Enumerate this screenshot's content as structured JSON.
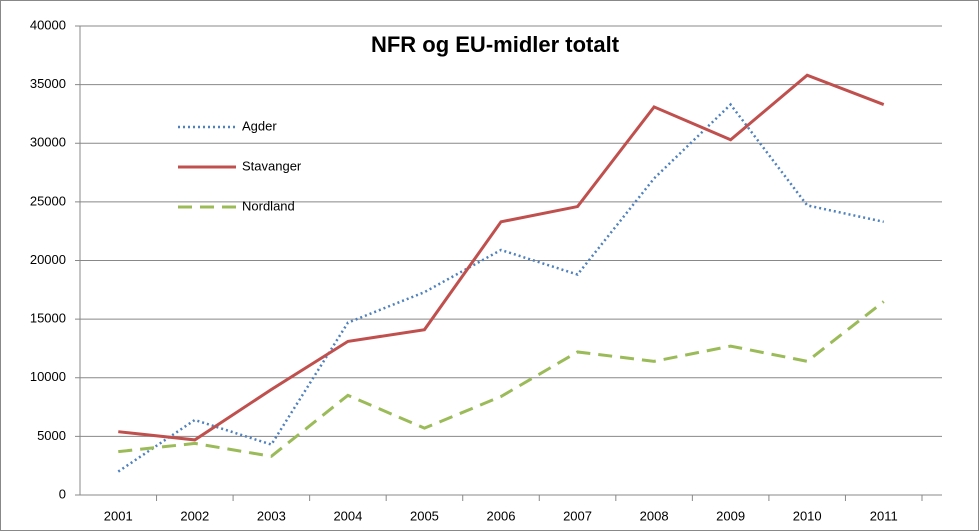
{
  "chart_data": {
    "type": "line",
    "title": "NFR og EU-midler totalt",
    "categories": [
      "2001",
      "2002",
      "2003",
      "2004",
      "2005",
      "2006",
      "2007",
      "2008",
      "2009",
      "2010",
      "2011"
    ],
    "series": [
      {
        "name": "Agder",
        "color": "#4f81bd",
        "dash": "dotted",
        "values": [
          2000,
          6400,
          4300,
          14700,
          17300,
          20900,
          18800,
          27000,
          33300,
          24700,
          23300
        ]
      },
      {
        "name": "Stavanger",
        "color": "#c0504d",
        "dash": "solid",
        "values": [
          5400,
          4700,
          9000,
          13100,
          14100,
          23300,
          24600,
          33100,
          30300,
          35800,
          33300
        ]
      },
      {
        "name": "Nordland",
        "color": "#9bbb59",
        "dash": "dashed",
        "values": [
          3700,
          4400,
          3300,
          8500,
          5700,
          8400,
          12200,
          11400,
          12700,
          11400,
          16500
        ]
      }
    ],
    "ylim": [
      0,
      40000
    ],
    "yticks": [
      0,
      5000,
      10000,
      15000,
      20000,
      25000,
      30000,
      35000,
      40000
    ],
    "grid": true,
    "legend": "upper left"
  }
}
